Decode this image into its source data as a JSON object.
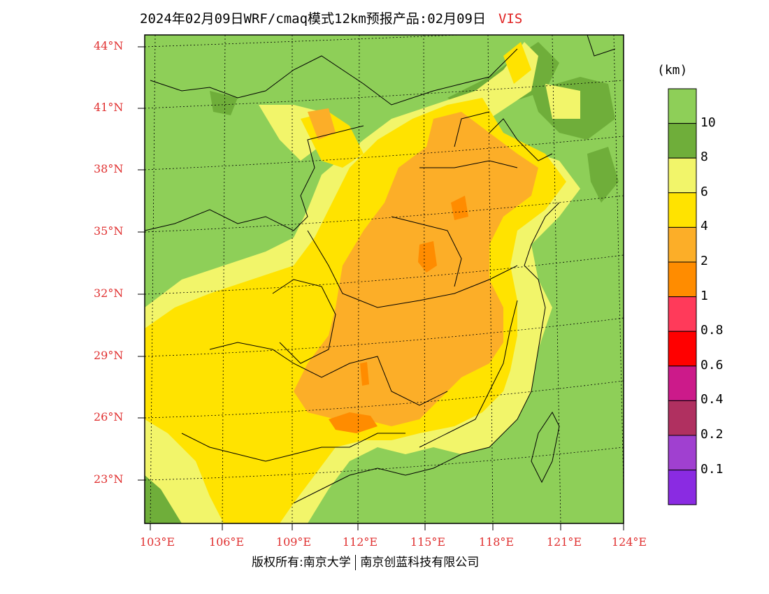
{
  "title": {
    "text": "2024年02月09日WRF/cmaq模式12km预报产品:02月09日",
    "variable": "VIS"
  },
  "lat_labels": [
    "44°N",
    "41°N",
    "38°N",
    "35°N",
    "32°N",
    "29°N",
    "26°N",
    "23°N"
  ],
  "lon_labels": [
    "103°E",
    "106°E",
    "109°E",
    "112°E",
    "115°E",
    "118°E",
    "121°E",
    "124°E"
  ],
  "colorbar": {
    "unit": "(km)",
    "labels": [
      "10",
      "8",
      "6",
      "4",
      "2",
      "1",
      "0.8",
      "0.6",
      "0.4",
      "0.2",
      "0.1"
    ],
    "colors": [
      "#8ecf58",
      "#6fae3a",
      "#f2f56a",
      "#ffe300",
      "#fcae28",
      "#ff8c00",
      "#ff3a5a",
      "#ff0000",
      "#cc1a8a",
      "#b03060",
      "#a040d0",
      "#8a2be2"
    ]
  },
  "footer": {
    "left": "版权所有:南京大学",
    "right": "南京创蓝科技有限公司"
  },
  "colors": {
    "label_red": "#e03030",
    "land_green": "#8ecf58",
    "dark_green": "#6fae3a",
    "light_yellow": "#f2f56a",
    "yellow": "#ffe300",
    "orange": "#fcae28",
    "dark_orange": "#ff8c00"
  }
}
